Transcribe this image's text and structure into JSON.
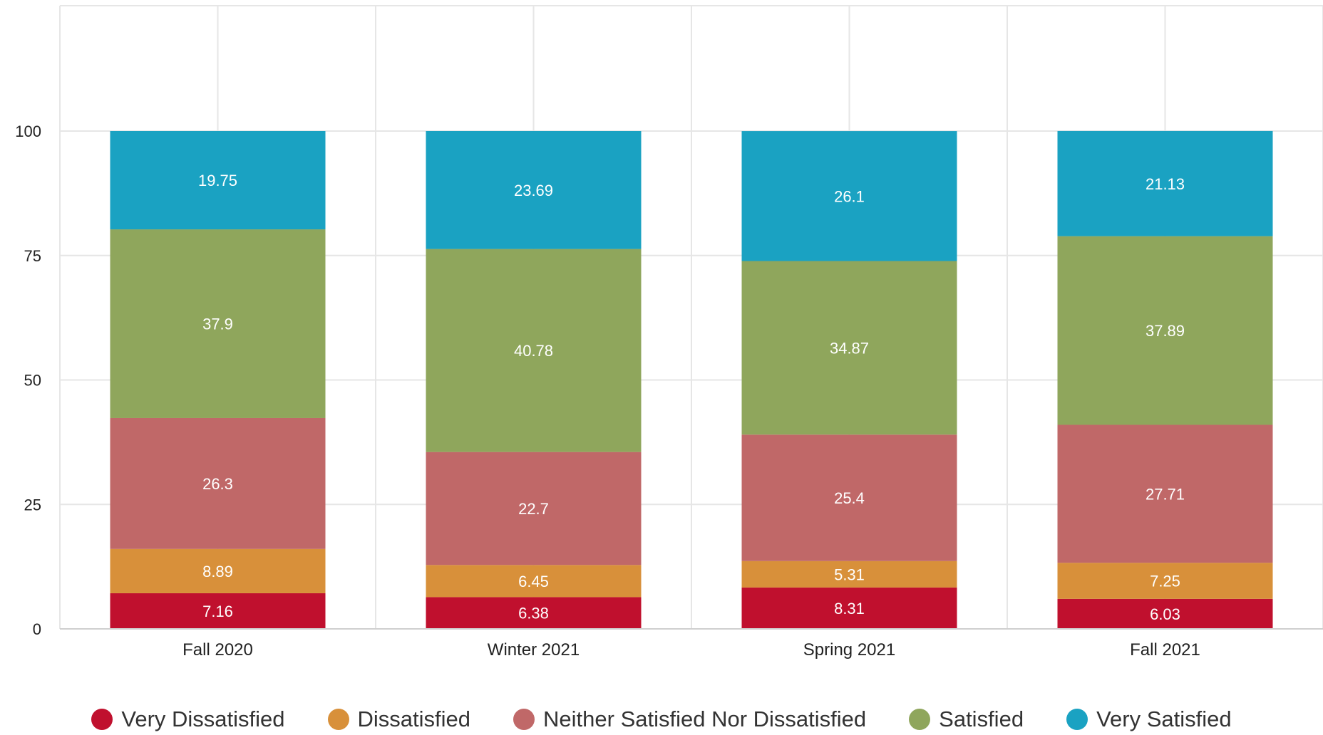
{
  "chart_data": {
    "type": "bar",
    "stacked": true,
    "title": "",
    "xlabel": "",
    "ylabel": "",
    "ylim": [
      0,
      100
    ],
    "yticks": [
      0,
      25,
      50,
      75,
      100
    ],
    "grid": true,
    "legend_position": "bottom",
    "categories": [
      "Fall 2020",
      "Winter 2021",
      "Spring 2021",
      "Fall 2021"
    ],
    "series": [
      {
        "name": "Very Dissatisfied",
        "color": "#c0102e",
        "values": [
          7.16,
          6.38,
          8.31,
          6.03
        ]
      },
      {
        "name": "Dissatisfied",
        "color": "#d8903a",
        "values": [
          8.89,
          6.45,
          5.31,
          7.25
        ]
      },
      {
        "name": "Neither Satisfied Nor Dissatisfied",
        "color": "#c06868",
        "values": [
          26.3,
          22.7,
          25.4,
          27.71
        ]
      },
      {
        "name": "Satisfied",
        "color": "#8fa65c",
        "values": [
          37.9,
          40.78,
          34.87,
          37.89
        ]
      },
      {
        "name": "Very Satisfied",
        "color": "#1aa2c2",
        "values": [
          19.75,
          23.69,
          26.1,
          21.13
        ]
      }
    ]
  }
}
